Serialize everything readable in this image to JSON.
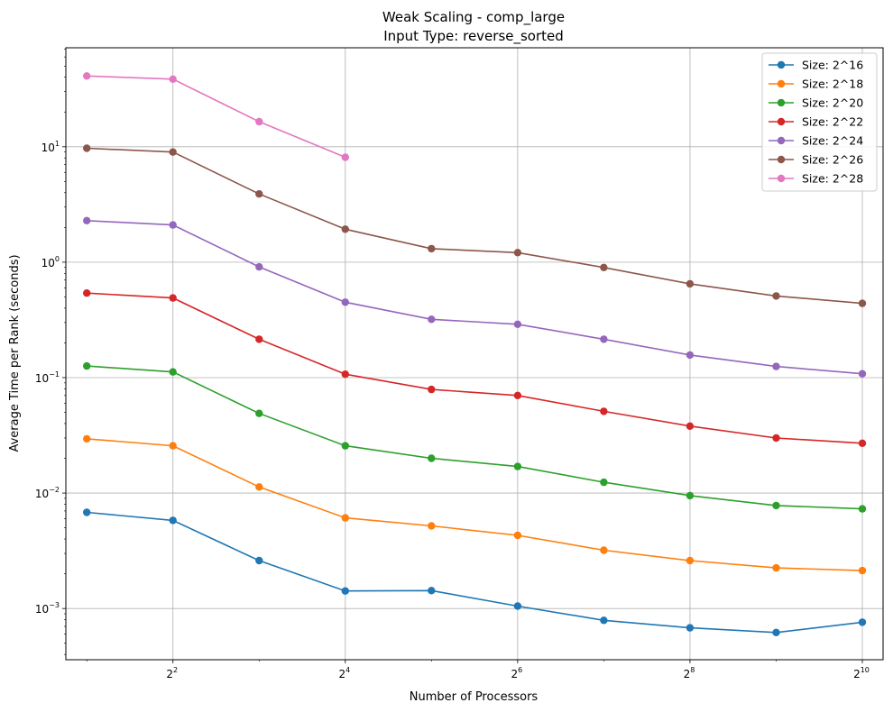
{
  "chart_data": {
    "type": "line",
    "title_line1": "Weak Scaling - comp_large",
    "title_line2": "Input Type: reverse_sorted",
    "xlabel": "Number of Processors",
    "ylabel": "Average Time per Rank (seconds)",
    "xscale": "log2",
    "yscale": "log10",
    "xlim": [
      1.69,
      1210
    ],
    "ylim": [
      0.00036,
      72
    ],
    "grid": true,
    "legend_position": "top-right",
    "x_ticks": [
      {
        "value": 4,
        "base": "2",
        "exp": "2"
      },
      {
        "value": 16,
        "base": "2",
        "exp": "4"
      },
      {
        "value": 64,
        "base": "2",
        "exp": "6"
      },
      {
        "value": 256,
        "base": "2",
        "exp": "8"
      },
      {
        "value": 1024,
        "base": "2",
        "exp": "10"
      }
    ],
    "y_ticks": [
      {
        "value": 0.001,
        "base": "10",
        "exp": "−3"
      },
      {
        "value": 0.01,
        "base": "10",
        "exp": "−2"
      },
      {
        "value": 0.1,
        "base": "10",
        "exp": "−1"
      },
      {
        "value": 1,
        "base": "10",
        "exp": "0"
      },
      {
        "value": 10,
        "base": "10",
        "exp": "1"
      }
    ],
    "x": [
      2,
      4,
      8,
      16,
      32,
      64,
      128,
      256,
      512,
      1024
    ],
    "series": [
      {
        "name": "Size: 2^16",
        "color": "#1f77b4",
        "values": [
          0.0068,
          0.0058,
          0.0026,
          0.00142,
          0.00143,
          0.00105,
          0.00079,
          0.00068,
          0.00062,
          0.00076
        ]
      },
      {
        "name": "Size: 2^18",
        "color": "#ff7f0e",
        "values": [
          0.0295,
          0.0257,
          0.0113,
          0.0061,
          0.0052,
          0.0043,
          0.0032,
          0.0026,
          0.00225,
          0.00213
        ]
      },
      {
        "name": "Size: 2^20",
        "color": "#2ca02c",
        "values": [
          0.126,
          0.112,
          0.049,
          0.0257,
          0.02,
          0.017,
          0.0124,
          0.0095,
          0.0078,
          0.0073
        ]
      },
      {
        "name": "Size: 2^22",
        "color": "#d62728",
        "values": [
          0.54,
          0.49,
          0.215,
          0.107,
          0.079,
          0.07,
          0.051,
          0.038,
          0.03,
          0.027
        ]
      },
      {
        "name": "Size: 2^24",
        "color": "#9467bd",
        "values": [
          2.29,
          2.1,
          0.91,
          0.45,
          0.32,
          0.29,
          0.215,
          0.157,
          0.125,
          0.108
        ]
      },
      {
        "name": "Size: 2^26",
        "color": "#8c564b",
        "values": [
          9.7,
          9.0,
          3.9,
          1.93,
          1.31,
          1.21,
          0.9,
          0.65,
          0.51,
          0.44
        ]
      },
      {
        "name": "Size: 2^28",
        "color": "#e377c2",
        "values": [
          41,
          38.5,
          16.5,
          8.1,
          null,
          null,
          null,
          null,
          null,
          null
        ]
      }
    ]
  }
}
